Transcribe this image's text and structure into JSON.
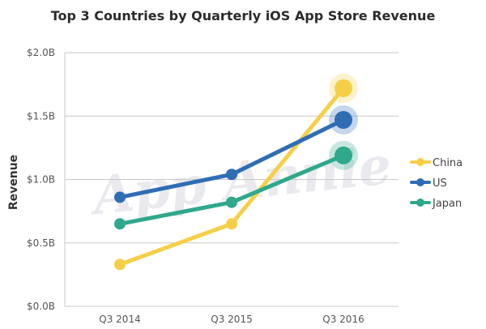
{
  "chart_data": {
    "type": "line",
    "title": "Top 3 Countries by Quarterly iOS App Store Revenue",
    "ylabel": "Revenue",
    "xlabel": "",
    "categories": [
      "Q3 2014",
      "Q3 2015",
      "Q3 2016"
    ],
    "ylim": [
      0,
      2.0
    ],
    "yticks": [
      {
        "value": 0.0,
        "label": "$0.0B"
      },
      {
        "value": 0.5,
        "label": "$0.5B"
      },
      {
        "value": 1.0,
        "label": "$1.0B"
      },
      {
        "value": 1.5,
        "label": "$1.5B"
      },
      {
        "value": 2.0,
        "label": "$2.0B"
      }
    ],
    "grid": true,
    "legend_position": "right",
    "watermark": "App Annie",
    "series": [
      {
        "name": "China",
        "color": "#f5cf47",
        "values": [
          0.33,
          0.65,
          1.72
        ]
      },
      {
        "name": "US",
        "color": "#2f6db5",
        "values": [
          0.86,
          1.04,
          1.47
        ]
      },
      {
        "name": "Japan",
        "color": "#2fa88c",
        "values": [
          0.65,
          0.82,
          1.19
        ]
      }
    ]
  }
}
